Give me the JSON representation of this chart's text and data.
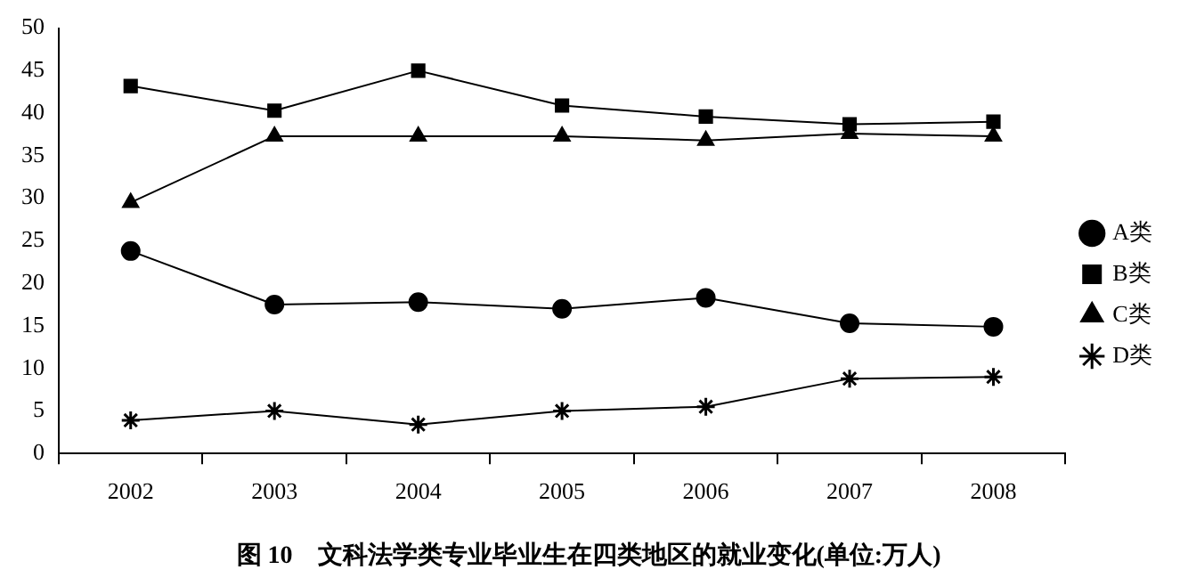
{
  "chart_data": {
    "type": "line",
    "title": "图 10　文科法学类专业毕业生在四类地区的就业变化(单位:万人)",
    "categories": [
      "2002",
      "2003",
      "2004",
      "2005",
      "2006",
      "2007",
      "2008"
    ],
    "series": [
      {
        "name": "A类",
        "color": "#000000",
        "marker": "circle",
        "values": [
          23.8,
          17.5,
          17.8,
          17,
          18.3,
          15.3,
          14.9
        ]
      },
      {
        "name": "B类",
        "color": "#000000",
        "marker": "square",
        "values": [
          43.2,
          40.3,
          45,
          40.9,
          39.6,
          38.7,
          39
        ]
      },
      {
        "name": "C类",
        "color": "#000000",
        "marker": "triangle",
        "values": [
          29.5,
          37.3,
          37.3,
          37.3,
          36.8,
          37.6,
          37.3
        ]
      },
      {
        "name": "D类",
        "color": "#000000",
        "marker": "cross",
        "values": [
          3.9,
          5,
          3.4,
          5,
          5.5,
          8.8,
          9
        ]
      }
    ],
    "ylim": [
      0,
      50
    ],
    "yticks": [
      0,
      5,
      10,
      15,
      20,
      25,
      30,
      35,
      40,
      45,
      50
    ],
    "grid": false,
    "legend": "right",
    "line_style": "solid"
  }
}
